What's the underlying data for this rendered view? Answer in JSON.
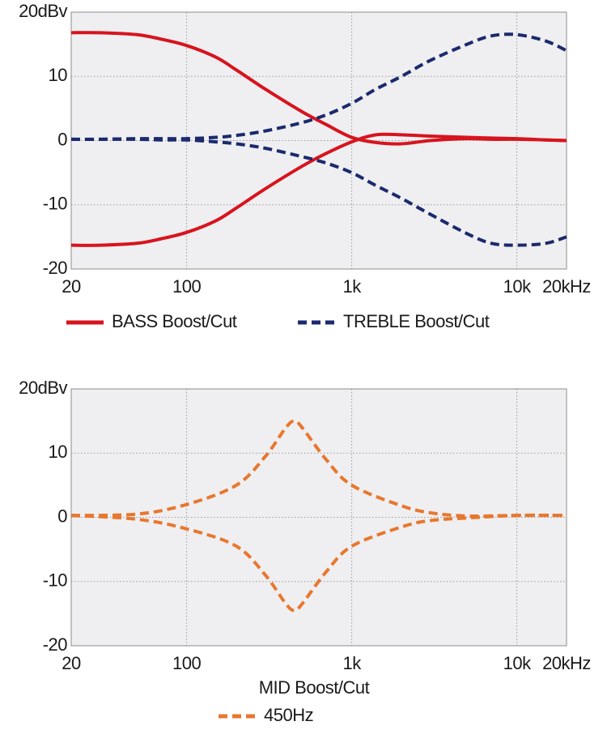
{
  "chart_data": [
    {
      "type": "line",
      "xscale": "log",
      "grid": true,
      "x": [
        20,
        30,
        50,
        70,
        100,
        150,
        200,
        300,
        500,
        700,
        1000,
        1400,
        2000,
        3000,
        5000,
        7000,
        10000,
        15000,
        20000
      ],
      "xlim": [
        20,
        20000
      ],
      "xticks": [
        20,
        100,
        {
          "value": 1000,
          "label": "1k"
        },
        {
          "value": 10000,
          "label": "10k"
        },
        {
          "value": 20000,
          "label": "20kHz"
        }
      ],
      "ylim": [
        -20,
        20
      ],
      "yticks": [
        {
          "value": 20,
          "label": "20dBv"
        },
        10,
        0,
        -10,
        -20
      ],
      "series": [
        {
          "name": "BASS Boost/Cut",
          "color": "#d7141e",
          "dashed": false,
          "values": [
            [
              16.8,
              16.8,
              16.5,
              15.8,
              14.8,
              13,
              11,
              8,
              4.5,
              2.5,
              0.5,
              -0.3,
              -0.5,
              0,
              0.3,
              0.2,
              0.2,
              0.1,
              0
            ],
            [
              -16.3,
              -16.3,
              -16,
              -15.3,
              -14.3,
              -12.5,
              -10.5,
              -7.5,
              -4,
              -2,
              -0.2,
              0.9,
              0.9,
              0.7,
              0.5,
              0.4,
              0.3,
              0.1,
              0
            ]
          ]
        },
        {
          "name": "TREBLE Boost/Cut",
          "color": "#1b2a6e",
          "dashed": true,
          "values": [
            [
              0.2,
              0.2,
              0.3,
              0.3,
              0.3,
              0.5,
              0.8,
              1.5,
              2.8,
              4,
              5.8,
              8,
              10,
              12.5,
              15,
              16.3,
              16.5,
              15.5,
              14
            ],
            [
              0.2,
              0.2,
              0.2,
              0.1,
              0.1,
              -0.2,
              -0.5,
              -1.2,
              -2.5,
              -3.5,
              -5,
              -7,
              -9,
              -11.5,
              -14.5,
              -16,
              -16.3,
              -16,
              -15
            ]
          ]
        }
      ]
    },
    {
      "type": "line",
      "xscale": "log",
      "grid": true,
      "x": [
        20,
        50,
        100,
        200,
        300,
        400,
        450,
        500,
        700,
        1000,
        2000,
        3000,
        5000,
        10000,
        20000
      ],
      "xlim": [
        20,
        20000
      ],
      "xticks": [
        20,
        100,
        {
          "value": 1000,
          "label": "1k"
        },
        {
          "value": 10000,
          "label": "10k"
        },
        {
          "value": 20000,
          "label": "20kHz"
        }
      ],
      "ylim": [
        -20,
        20
      ],
      "yticks": [
        {
          "value": 20,
          "label": "20dBv"
        },
        10,
        0,
        -10,
        -20
      ],
      "legend_title": "MID Boost/Cut",
      "series": [
        {
          "name": "450Hz",
          "color": "#e8772e",
          "dashed": true,
          "values": [
            [
              0.3,
              0.5,
              2,
              5,
              9.5,
              14,
              15,
              14,
              9,
              5,
              1.8,
              0.7,
              0.2,
              0.3,
              0.3
            ],
            [
              0.3,
              -0.3,
              -1.8,
              -4.5,
              -9,
              -13.5,
              -14.5,
              -13.5,
              -8.5,
              -4.5,
              -1.5,
              -0.5,
              -0.1,
              0.3,
              0.3
            ]
          ]
        }
      ]
    }
  ]
}
